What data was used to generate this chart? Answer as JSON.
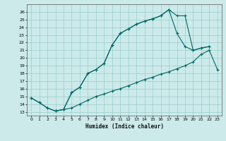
{
  "xlabel": "Humidex (Indice chaleur)",
  "bg_color": "#cceaea",
  "grid_color": "#99cccc",
  "line_color": "#006666",
  "xlim": [
    -0.5,
    23.5
  ],
  "ylim": [
    12.5,
    27.0
  ],
  "xticks": [
    0,
    1,
    2,
    3,
    4,
    5,
    6,
    7,
    8,
    9,
    10,
    11,
    12,
    13,
    14,
    15,
    16,
    17,
    18,
    19,
    20,
    21,
    22,
    23
  ],
  "yticks": [
    13,
    14,
    15,
    16,
    17,
    18,
    19,
    20,
    21,
    22,
    23,
    24,
    25,
    26
  ],
  "line1_x": [
    0,
    1,
    2,
    3,
    4,
    5,
    6,
    7,
    8,
    9,
    10,
    11,
    12,
    13,
    14,
    15,
    16,
    17,
    18,
    19,
    20,
    21,
    22
  ],
  "line1_y": [
    14.8,
    14.2,
    13.5,
    13.1,
    13.3,
    15.5,
    16.2,
    18.0,
    18.5,
    19.3,
    21.7,
    23.2,
    23.8,
    24.4,
    24.8,
    25.1,
    25.5,
    26.3,
    25.5,
    25.5,
    21.0,
    21.3,
    21.5
  ],
  "line2_x": [
    0,
    1,
    2,
    3,
    4,
    5,
    6,
    7,
    8,
    9,
    10,
    11,
    12,
    13,
    14,
    15,
    16,
    17,
    18,
    19,
    20,
    21,
    22,
    23
  ],
  "line2_y": [
    14.8,
    14.2,
    13.5,
    13.1,
    13.3,
    13.5,
    14.0,
    14.5,
    15.0,
    15.3,
    15.7,
    16.0,
    16.4,
    16.8,
    17.2,
    17.5,
    17.9,
    18.2,
    18.6,
    19.0,
    19.5,
    20.5,
    21.0,
    18.5
  ],
  "line3_x": [
    3,
    4,
    5,
    6,
    7,
    8,
    9,
    10,
    11,
    12,
    13,
    14,
    15,
    16,
    17,
    18,
    19,
    20,
    21,
    22
  ],
  "line3_y": [
    13.1,
    13.3,
    15.5,
    16.2,
    18.0,
    18.5,
    19.3,
    21.7,
    23.2,
    23.8,
    24.4,
    24.8,
    25.1,
    25.5,
    26.3,
    23.2,
    21.5,
    21.0,
    21.3,
    21.5
  ]
}
